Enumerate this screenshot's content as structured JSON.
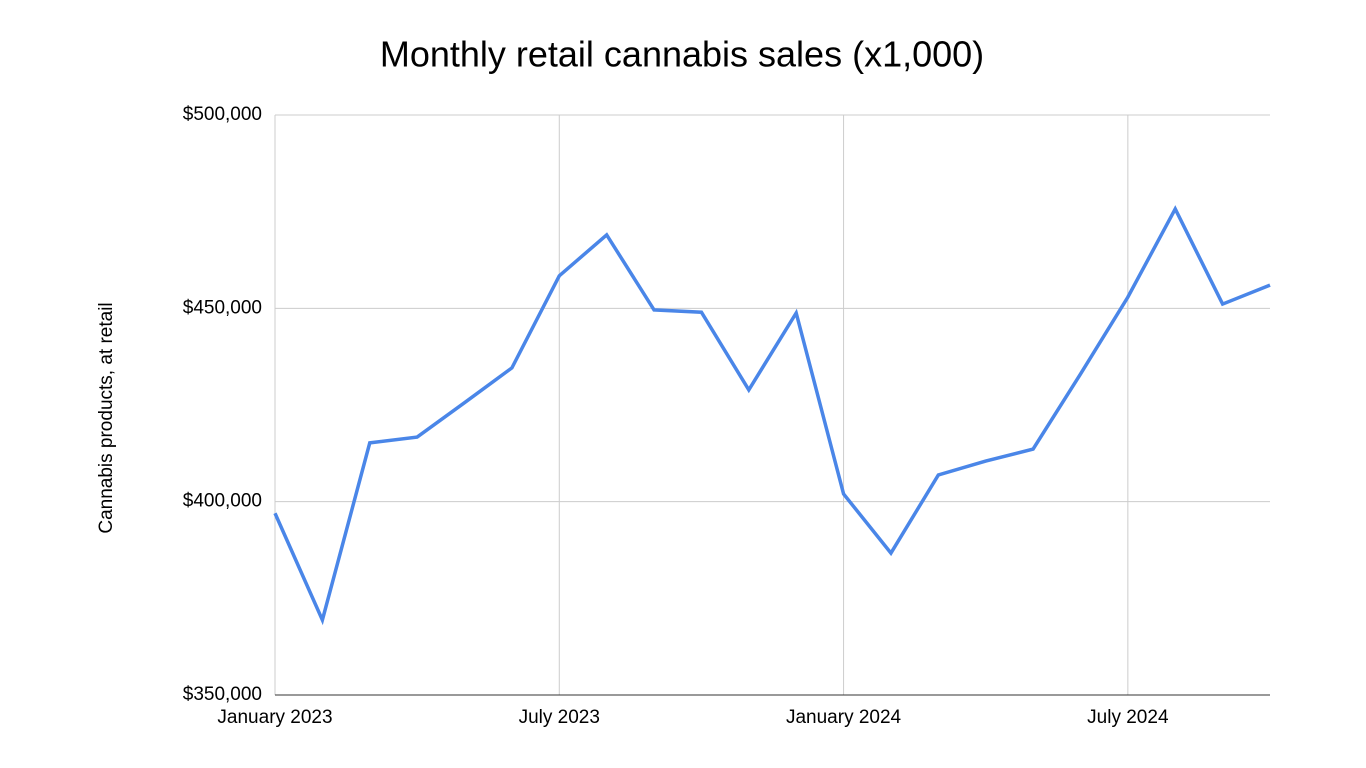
{
  "chart_data": {
    "type": "line",
    "title": "Monthly retail cannabis sales (x1,000)",
    "y_label": "Cannabis products, at retail",
    "categories": [
      "January 2023",
      null,
      null,
      null,
      null,
      null,
      "July 2023",
      null,
      null,
      null,
      null,
      null,
      "January 2024",
      null,
      null,
      null,
      null,
      null,
      "July 2024",
      null,
      null,
      null
    ],
    "series": [
      {
        "name": "Cannabis products, at retail",
        "color": "#4a86e8",
        "values": [
          397000,
          369400,
          415200,
          416700,
          425600,
          434600,
          458400,
          469000,
          449600,
          449000,
          428900,
          448800,
          402000,
          386700,
          406900,
          410500,
          413600,
          433000,
          452900,
          475700,
          451100,
          456000
        ]
      }
    ],
    "ylim": [
      350000,
      500000
    ],
    "yticks": [
      {
        "value": 350000,
        "label": "$350,000"
      },
      {
        "value": 400000,
        "label": "$400,000"
      },
      {
        "value": 450000,
        "label": "$450,000"
      },
      {
        "value": 500000,
        "label": "$500,000"
      }
    ],
    "grid": true
  }
}
